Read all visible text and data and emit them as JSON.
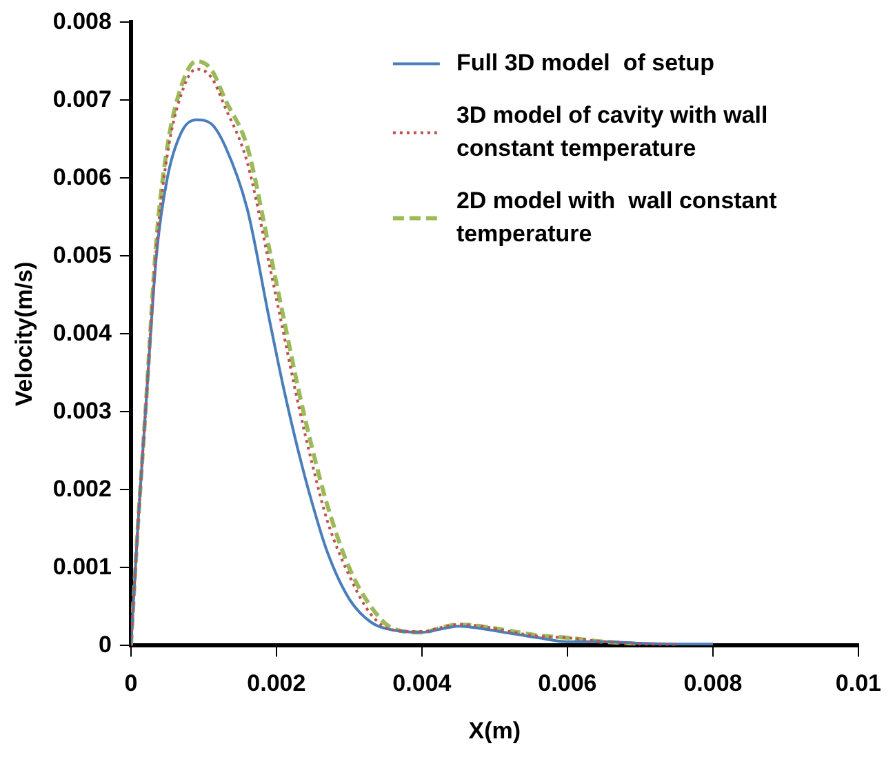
{
  "chart_data": {
    "type": "line",
    "xlabel": "X(m)",
    "ylabel": "Velocity(m/s)",
    "xlim": [
      0,
      0.01
    ],
    "xticks": [
      0,
      0.002,
      0.004,
      0.006,
      0.008,
      0.01
    ],
    "ylim": [
      0,
      0.008
    ],
    "yticks": [
      0,
      0.001,
      0.002,
      0.003,
      0.004,
      0.005,
      0.006,
      0.007,
      0.008
    ],
    "grid": false,
    "legend": "top right",
    "marker": "none",
    "series": [
      {
        "name": "Full 3D model  of setup",
        "color": "#4a7ebb",
        "line_style": "solid",
        "x": [
          0,
          0.0001,
          0.0002,
          0.00035,
          0.0005,
          0.0007,
          0.0009,
          0.0011,
          0.0013,
          0.0016,
          0.0019,
          0.0021,
          0.0023,
          0.0025,
          0.0027,
          0.003,
          0.0033,
          0.0036,
          0.004,
          0.0043,
          0.0045,
          0.0048,
          0.0052,
          0.0056,
          0.006,
          0.0065,
          0.007,
          0.0075,
          0.008
        ],
        "values": [
          0,
          0.0016,
          0.003,
          0.005,
          0.006,
          0.0066,
          0.00675,
          0.0067,
          0.0064,
          0.0056,
          0.0042,
          0.0033,
          0.0025,
          0.0018,
          0.0012,
          0.0006,
          0.0003,
          0.0002,
          0.00017,
          0.00022,
          0.00025,
          0.00022,
          0.00016,
          0.0001,
          5e-05,
          5e-05,
          3e-05,
          2e-05,
          2e-05
        ]
      },
      {
        "name": "3D model of cavity with wall constant temperature",
        "color": "#c0504d",
        "line_style": "dotted",
        "x": [
          0,
          0.0001,
          0.0002,
          0.00035,
          0.0005,
          0.0007,
          0.0009,
          0.0011,
          0.0013,
          0.0016,
          0.0019,
          0.0021,
          0.0023,
          0.0025,
          0.0027,
          0.003,
          0.0033,
          0.0036,
          0.004,
          0.0043,
          0.0045,
          0.0048,
          0.0052,
          0.0056,
          0.006,
          0.0065,
          0.007,
          0.0075
        ],
        "values": [
          0,
          0.0016,
          0.003,
          0.0051,
          0.0063,
          0.0071,
          0.0074,
          0.0073,
          0.0069,
          0.0062,
          0.0049,
          0.004,
          0.0031,
          0.0023,
          0.0016,
          0.0009,
          0.0004,
          0.0002,
          0.00018,
          0.00024,
          0.00027,
          0.00025,
          0.00018,
          0.00012,
          0.0001,
          5e-05,
          2e-05,
          1e-05
        ]
      },
      {
        "name": "2D model with  wall constant temperature",
        "color": "#9bbb59",
        "line_style": "dashed",
        "x": [
          0,
          0.0001,
          0.0002,
          0.00035,
          0.0005,
          0.0007,
          0.0009,
          0.0011,
          0.0013,
          0.0016,
          0.0019,
          0.0021,
          0.0023,
          0.0025,
          0.0027,
          0.003,
          0.0033,
          0.0036,
          0.004,
          0.0043,
          0.0045,
          0.0048,
          0.0052,
          0.0056,
          0.006,
          0.0065,
          0.007
        ],
        "values": [
          0,
          0.0016,
          0.003,
          0.0052,
          0.0064,
          0.0072,
          0.0075,
          0.0074,
          0.007,
          0.0064,
          0.0051,
          0.0042,
          0.0033,
          0.0025,
          0.0018,
          0.001,
          0.0005,
          0.00022,
          0.00017,
          0.00024,
          0.00027,
          0.00025,
          0.00019,
          0.00013,
          0.0001,
          5e-05,
          2e-05
        ]
      }
    ]
  }
}
